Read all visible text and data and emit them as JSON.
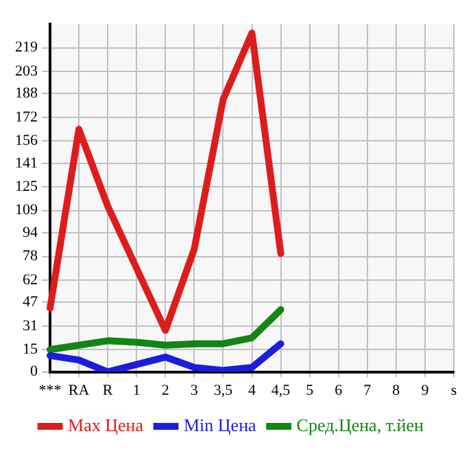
{
  "chart_data": {
    "type": "line",
    "categories": [
      "***",
      "RA",
      "R",
      "1",
      "2",
      "3",
      "3,5",
      "4",
      "4,5",
      "5",
      "6",
      "7",
      "8",
      "9",
      "s"
    ],
    "series": [
      {
        "name": "Max Цена",
        "color": "#dd1c1c",
        "values": [
          43,
          164,
          112,
          70,
          28,
          83,
          184,
          229,
          80,
          null,
          null,
          null,
          null,
          null,
          null
        ]
      },
      {
        "name": "Min Цена",
        "color": "#1c1cdd",
        "values": [
          11,
          8,
          0,
          5,
          10,
          3,
          1,
          3,
          19,
          null,
          null,
          null,
          null,
          null,
          null
        ]
      },
      {
        "name": "Сред.Цена, т.йен",
        "color": "#128512",
        "values": [
          15,
          18,
          21,
          20,
          18,
          19,
          19,
          23,
          42,
          null,
          null,
          null,
          null,
          null,
          null
        ]
      }
    ],
    "ylim": [
      0,
      235
    ],
    "yticks": [
      0,
      15,
      31,
      47,
      62,
      78,
      94,
      109,
      125,
      141,
      156,
      172,
      188,
      203,
      219
    ],
    "grid": true,
    "legend": "bottom",
    "marker": "none",
    "line_style": "solid"
  }
}
